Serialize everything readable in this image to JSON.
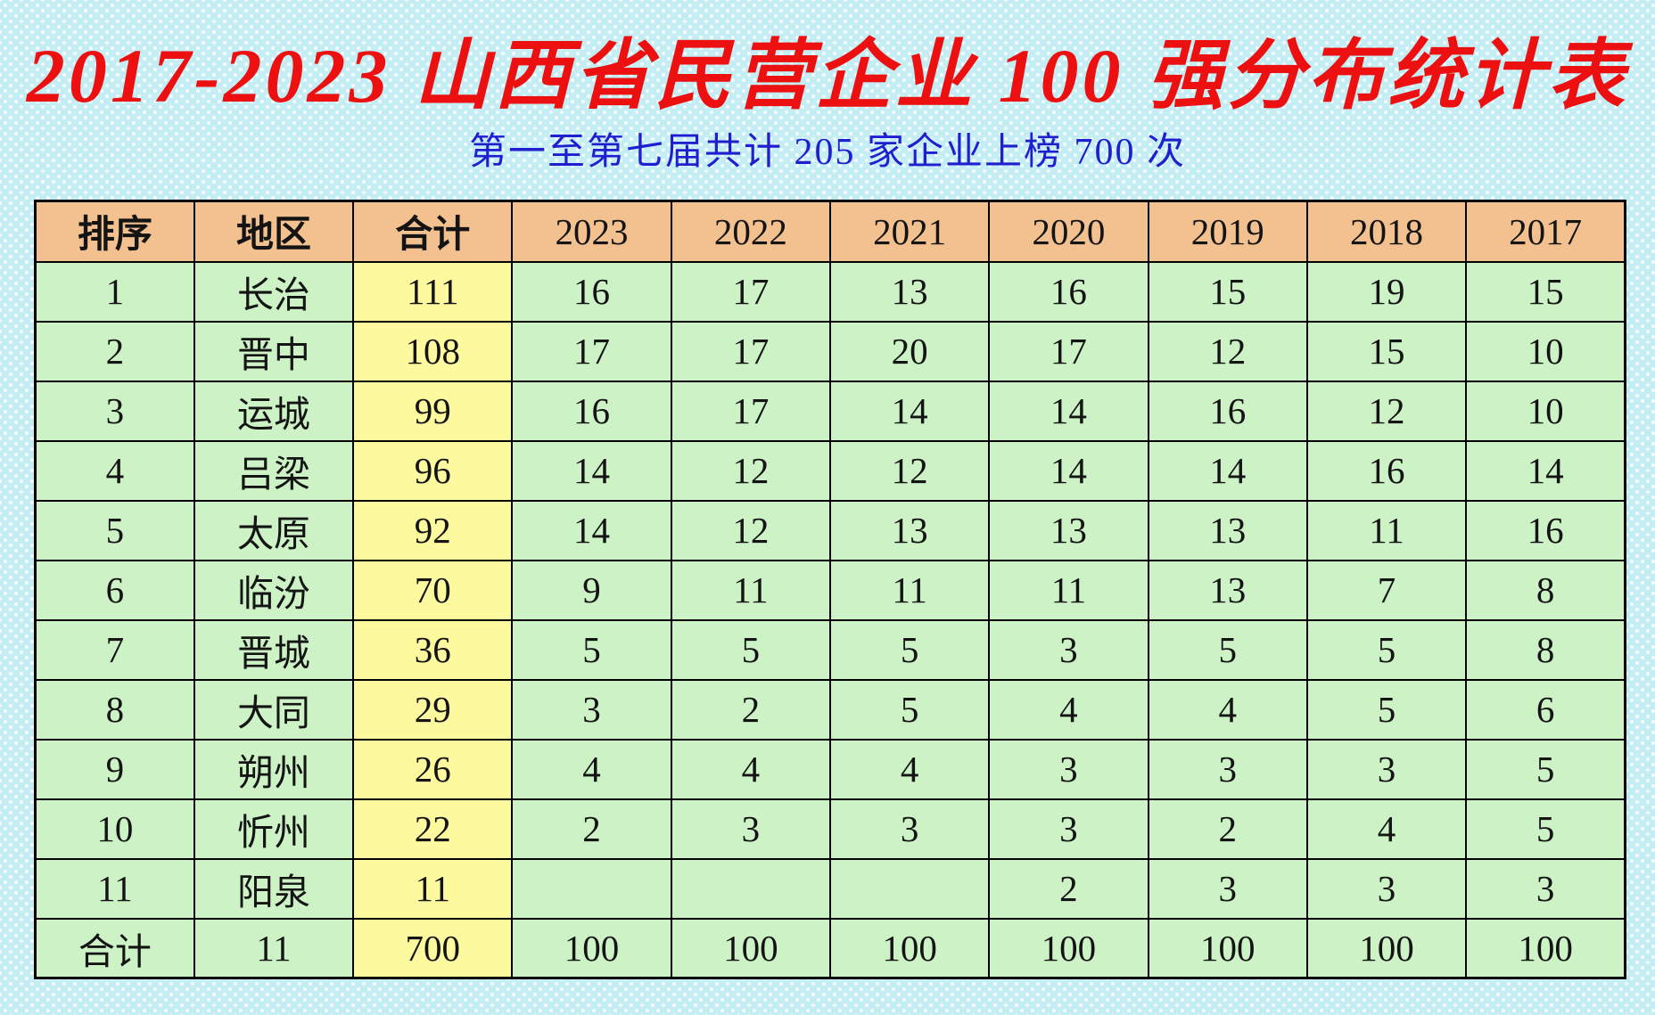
{
  "slide": {
    "title": "2017-2023 山西省民营企业 100 强分布统计表",
    "subtitle": "第一至第七届共计 205 家企业上榜 700 次"
  },
  "colors": {
    "background": "#c4eef4",
    "title_red": "#ec1010",
    "subtitle_blue": "#1f1fd0",
    "header_fill": "#f2c18f",
    "cell_green": "#ccf2c6",
    "cell_yellow": "#fdf99e",
    "border": "#000000"
  },
  "chart_data": {
    "type": "table",
    "title": "2017-2023 山西省民营企业 100 强分布统计表",
    "subtitle": "第一至第七届共计 205 家企业上榜 700 次",
    "columns": [
      "排序",
      "地区",
      "合计",
      "2023",
      "2022",
      "2021",
      "2020",
      "2019",
      "2018",
      "2017"
    ],
    "rows": [
      [
        "1",
        "长治",
        "111",
        "16",
        "17",
        "13",
        "16",
        "15",
        "19",
        "15"
      ],
      [
        "2",
        "晋中",
        "108",
        "17",
        "17",
        "20",
        "17",
        "12",
        "15",
        "10"
      ],
      [
        "3",
        "运城",
        "99",
        "16",
        "17",
        "14",
        "14",
        "16",
        "12",
        "10"
      ],
      [
        "4",
        "吕梁",
        "96",
        "14",
        "12",
        "12",
        "14",
        "14",
        "16",
        "14"
      ],
      [
        "5",
        "太原",
        "92",
        "14",
        "12",
        "13",
        "13",
        "13",
        "11",
        "16"
      ],
      [
        "6",
        "临汾",
        "70",
        "9",
        "11",
        "11",
        "11",
        "13",
        "7",
        "8"
      ],
      [
        "7",
        "晋城",
        "36",
        "5",
        "5",
        "5",
        "3",
        "5",
        "5",
        "8"
      ],
      [
        "8",
        "大同",
        "29",
        "3",
        "2",
        "5",
        "4",
        "4",
        "5",
        "6"
      ],
      [
        "9",
        "朔州",
        "26",
        "4",
        "4",
        "4",
        "3",
        "3",
        "3",
        "5"
      ],
      [
        "10",
        "忻州",
        "22",
        "2",
        "3",
        "3",
        "3",
        "2",
        "4",
        "5"
      ],
      [
        "11",
        "阳泉",
        "11",
        "",
        "",
        "",
        "2",
        "3",
        "3",
        "3"
      ],
      [
        "合计",
        "11",
        "700",
        "100",
        "100",
        "100",
        "100",
        "100",
        "100",
        "100"
      ]
    ]
  }
}
